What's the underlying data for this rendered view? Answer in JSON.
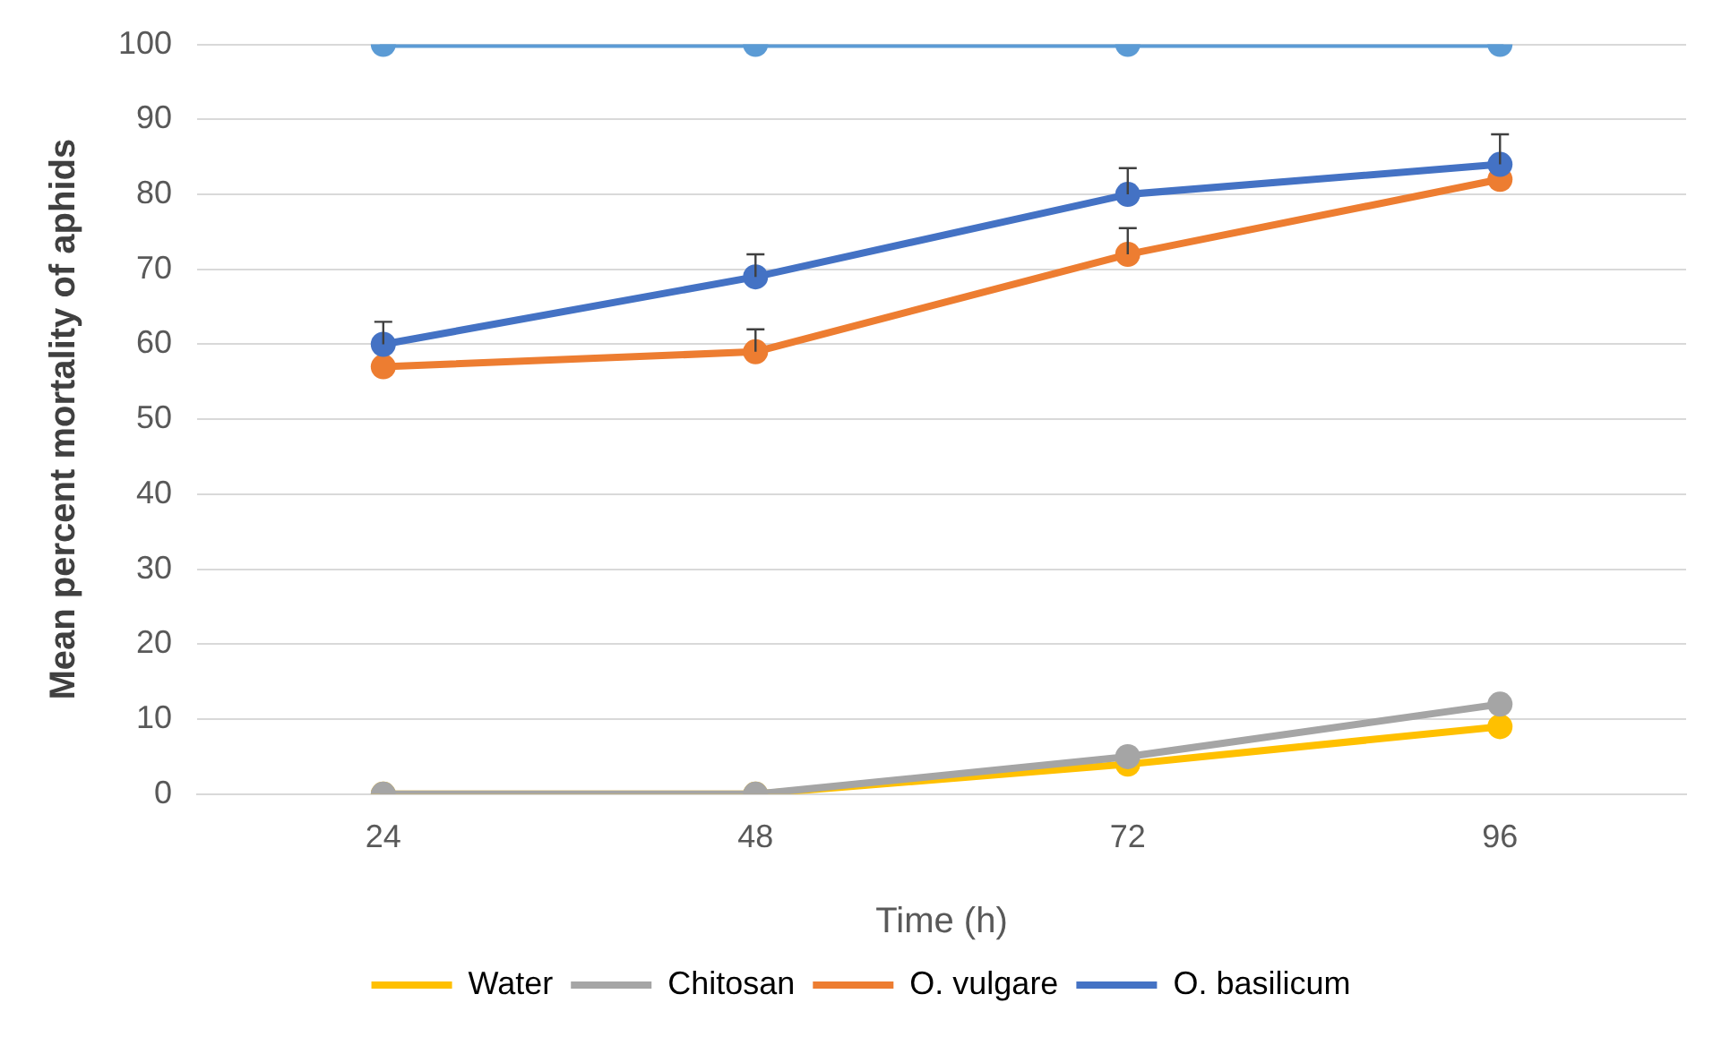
{
  "chart_data": {
    "type": "line",
    "xlabel": "Time (h)",
    "ylabel": "Mean percent mortality of aphids",
    "categories": [
      "24",
      "48",
      "72",
      "96"
    ],
    "ylim": [
      0,
      100
    ],
    "yticks": [
      0,
      10,
      20,
      30,
      40,
      50,
      60,
      70,
      80,
      90,
      100
    ],
    "grid": "y",
    "legend": "bottom",
    "marker": "circle",
    "line_style": "solid",
    "series": [
      {
        "name": "Water",
        "color": "#ffc000",
        "values": [
          0,
          0,
          4,
          9
        ]
      },
      {
        "name": "Chitosan",
        "color": "#a5a5a5",
        "values": [
          0,
          0,
          5,
          12
        ]
      },
      {
        "name": "O. vulgare",
        "color": "#ed7d31",
        "values": [
          57,
          59,
          72,
          82
        ],
        "errors": [
          null,
          [
            59,
            62
          ],
          [
            72,
            75.5
          ],
          null
        ]
      },
      {
        "name": "O. basilicum",
        "color": "#4472c4",
        "values": [
          60,
          69,
          80,
          84
        ],
        "errors": [
          [
            60,
            63
          ],
          [
            69,
            72
          ],
          [
            80,
            83.5
          ],
          [
            84,
            88
          ]
        ]
      },
      {
        "color": "#5b9bd5",
        "values": [
          100,
          100,
          100,
          100
        ]
      }
    ]
  }
}
